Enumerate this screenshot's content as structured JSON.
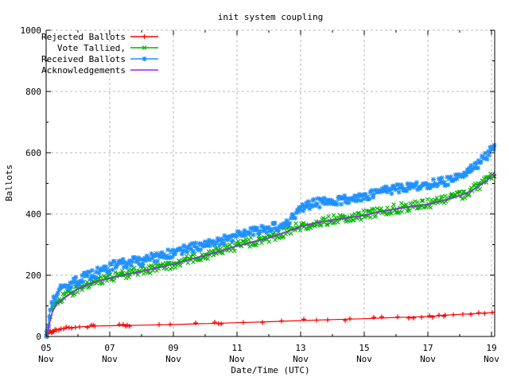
{
  "chart_data": {
    "type": "line",
    "title": "init system coupling",
    "xlabel": "Date/Time (UTC)",
    "ylabel": "Ballots",
    "xlim": [
      5.0,
      19.1
    ],
    "ylim": [
      0,
      1000
    ],
    "grid": true,
    "legend_position": "top-left-inside",
    "x_ticks": [
      {
        "day": 5,
        "line1": "05",
        "line2": "Nov"
      },
      {
        "day": 7,
        "line1": "07",
        "line2": "Nov"
      },
      {
        "day": 9,
        "line1": "09",
        "line2": "Nov"
      },
      {
        "day": 11,
        "line1": "11",
        "line2": "Nov"
      },
      {
        "day": 13,
        "line1": "13",
        "line2": "Nov"
      },
      {
        "day": 15,
        "line1": "15",
        "line2": "Nov"
      },
      {
        "day": 17,
        "line1": "17",
        "line2": "Nov"
      },
      {
        "day": 19,
        "line1": "19",
        "line2": "Nov"
      }
    ],
    "x_minor_ticks": [
      6,
      8,
      10,
      12,
      14,
      16,
      18
    ],
    "y_ticks": [
      0,
      200,
      400,
      600,
      800,
      1000
    ],
    "y_minor_ticks": [
      100,
      300,
      500,
      700,
      900
    ],
    "series": [
      {
        "name": "Rejected Ballots",
        "color": "#ff0000",
        "marker": "plus",
        "band": false,
        "points": [
          [
            5,
            0
          ],
          [
            5.05,
            6
          ],
          [
            5.1,
            12
          ],
          [
            5.2,
            18
          ],
          [
            5.4,
            24
          ],
          [
            5.7,
            28
          ],
          [
            6,
            31
          ],
          [
            6.5,
            34
          ],
          [
            7,
            35
          ],
          [
            7.5,
            36
          ],
          [
            8,
            37
          ],
          [
            9,
            39
          ],
          [
            10,
            42
          ],
          [
            11,
            45
          ],
          [
            12,
            48
          ],
          [
            13,
            52
          ],
          [
            14,
            55
          ],
          [
            15,
            58
          ],
          [
            16,
            62
          ],
          [
            17,
            65
          ],
          [
            17.5,
            69
          ],
          [
            18,
            72
          ],
          [
            18.5,
            75
          ],
          [
            19,
            78
          ],
          [
            19.1,
            80
          ]
        ],
        "marker_days": [
          5.03,
          5.06,
          5.1,
          5.13,
          5.17,
          5.2,
          5.24,
          5.28,
          5.33,
          5.4,
          5.47,
          5.55,
          5.63,
          5.72,
          5.8,
          5.92,
          6.05,
          6.3,
          6.42,
          6.48,
          6.53,
          7.3,
          7.42,
          7.5,
          7.55,
          7.62,
          8.55,
          8.9,
          9.7,
          10.3,
          10.42,
          10.5,
          11.2,
          11.8,
          12.4,
          13.1,
          13.5,
          13.85,
          14.4,
          14.55,
          15.3,
          15.55,
          16.05,
          16.4,
          16.55,
          16.8,
          17.05,
          17.15,
          17.35,
          17.5,
          17.55,
          17.8,
          18.1,
          18.35,
          18.6,
          18.78,
          19.02
        ]
      },
      {
        "name": "Vote Tallied,",
        "color": "#00b400",
        "marker": "cross",
        "band": true,
        "points": [
          [
            5,
            0
          ],
          [
            5.05,
            18
          ],
          [
            5.1,
            45
          ],
          [
            5.2,
            85
          ],
          [
            5.35,
            112
          ],
          [
            5.6,
            130
          ],
          [
            6,
            158
          ],
          [
            6.5,
            180
          ],
          [
            7,
            192
          ],
          [
            7.5,
            204
          ],
          [
            8,
            214
          ],
          [
            8.5,
            226
          ],
          [
            9,
            237
          ],
          [
            9.5,
            252
          ],
          [
            10,
            266
          ],
          [
            10.5,
            281
          ],
          [
            11,
            297
          ],
          [
            11.5,
            310
          ],
          [
            12,
            323
          ],
          [
            12.5,
            341
          ],
          [
            13,
            360
          ],
          [
            13.5,
            373
          ],
          [
            14,
            381
          ],
          [
            14.5,
            389
          ],
          [
            15,
            397
          ],
          [
            15.5,
            409
          ],
          [
            16,
            418
          ],
          [
            16.5,
            426
          ],
          [
            17,
            433
          ],
          [
            17.5,
            446
          ],
          [
            18,
            461
          ],
          [
            18.3,
            473
          ],
          [
            18.6,
            492
          ],
          [
            18.85,
            510
          ],
          [
            19,
            525
          ],
          [
            19.1,
            538
          ]
        ]
      },
      {
        "name": "Received Ballots",
        "color": "#1e90ff",
        "marker": "star",
        "band": true,
        "points": [
          [
            5,
            0
          ],
          [
            5.05,
            25
          ],
          [
            5.1,
            70
          ],
          [
            5.2,
            115
          ],
          [
            5.35,
            145
          ],
          [
            5.6,
            163
          ],
          [
            6,
            183
          ],
          [
            6.5,
            205
          ],
          [
            6.95,
            222
          ],
          [
            7,
            230
          ],
          [
            7.5,
            240
          ],
          [
            8,
            249
          ],
          [
            8.5,
            260
          ],
          [
            9,
            273
          ],
          [
            9.3,
            283
          ],
          [
            9.6,
            290
          ],
          [
            10,
            300
          ],
          [
            10.5,
            313
          ],
          [
            11,
            330
          ],
          [
            11.3,
            338
          ],
          [
            11.6,
            344
          ],
          [
            12,
            352
          ],
          [
            12.4,
            360
          ],
          [
            12.7,
            385
          ],
          [
            12.9,
            408
          ],
          [
            13,
            418
          ],
          [
            13.2,
            428
          ],
          [
            13.5,
            435
          ],
          [
            14,
            442
          ],
          [
            14.5,
            448
          ],
          [
            15,
            457
          ],
          [
            15.5,
            470
          ],
          [
            16,
            481
          ],
          [
            16.5,
            489
          ],
          [
            17,
            495
          ],
          [
            17.5,
            505
          ],
          [
            18,
            522
          ],
          [
            18.3,
            541
          ],
          [
            18.6,
            566
          ],
          [
            18.85,
            590
          ],
          [
            19,
            608
          ],
          [
            19.1,
            622
          ]
        ]
      },
      {
        "name": "Acknowledgements",
        "color": "#a020f0",
        "marker": "none",
        "band": false,
        "points": [
          [
            5,
            0
          ],
          [
            5.05,
            15
          ],
          [
            5.1,
            40
          ],
          [
            5.2,
            80
          ],
          [
            5.35,
            108
          ],
          [
            5.6,
            127
          ],
          [
            6,
            155
          ],
          [
            6.5,
            177
          ],
          [
            7,
            189
          ],
          [
            7.5,
            201
          ],
          [
            8,
            212
          ],
          [
            8.5,
            224
          ],
          [
            9,
            235
          ],
          [
            9.5,
            250
          ],
          [
            10,
            264
          ],
          [
            10.5,
            279
          ],
          [
            11,
            295
          ],
          [
            11.5,
            308
          ],
          [
            12,
            321
          ],
          [
            12.5,
            339
          ],
          [
            13,
            358
          ],
          [
            13.5,
            371
          ],
          [
            14,
            379
          ],
          [
            14.5,
            387
          ],
          [
            15,
            395
          ],
          [
            15.5,
            407
          ],
          [
            16,
            416
          ],
          [
            16.5,
            424
          ],
          [
            17,
            431
          ],
          [
            17.5,
            444
          ],
          [
            18,
            459
          ],
          [
            18.3,
            471
          ],
          [
            18.6,
            490
          ],
          [
            18.85,
            508
          ],
          [
            19,
            523
          ],
          [
            19.1,
            536
          ]
        ]
      }
    ]
  },
  "colors": {
    "background": "#ffffff",
    "grid": "#b8b8b8",
    "axis": "#000000",
    "text": "#000000"
  }
}
